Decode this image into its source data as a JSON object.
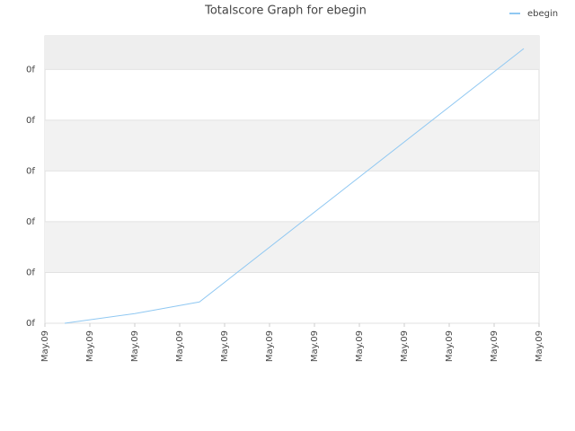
{
  "chart_data": {
    "type": "line",
    "title": "Totalscore Graph for ebegin",
    "x": [
      0.44,
      2.0,
      3.44,
      10.66
    ],
    "series": [
      {
        "name": "ebegin",
        "color": "#90c8f2",
        "values": [
          0,
          0.19,
          0.42,
          5.41
        ]
      }
    ],
    "xlim": [
      0,
      11
    ],
    "xticks": [
      {
        "value": 0,
        "label": "May.09"
      },
      {
        "value": 1,
        "label": "May.09"
      },
      {
        "value": 2,
        "label": "May.09"
      },
      {
        "value": 3,
        "label": "May.09"
      },
      {
        "value": 4,
        "label": "May.09"
      },
      {
        "value": 5,
        "label": "May.09"
      },
      {
        "value": 6,
        "label": "May.09"
      },
      {
        "value": 7,
        "label": "May.09"
      },
      {
        "value": 8,
        "label": "May.09"
      },
      {
        "value": 9,
        "label": "May.09"
      },
      {
        "value": 10,
        "label": "May.09"
      },
      {
        "value": 11,
        "label": "May.09"
      }
    ],
    "ylim": [
      0,
      5.66
    ],
    "yticks": [
      {
        "value": 0,
        "label": "0f"
      },
      {
        "value": 1,
        "label": "0f"
      },
      {
        "value": 2,
        "label": "0f"
      },
      {
        "value": 3,
        "label": "0f"
      },
      {
        "value": 4,
        "label": "0f"
      },
      {
        "value": 5,
        "label": "0f"
      }
    ],
    "grid": true,
    "legend": "top-right"
  }
}
